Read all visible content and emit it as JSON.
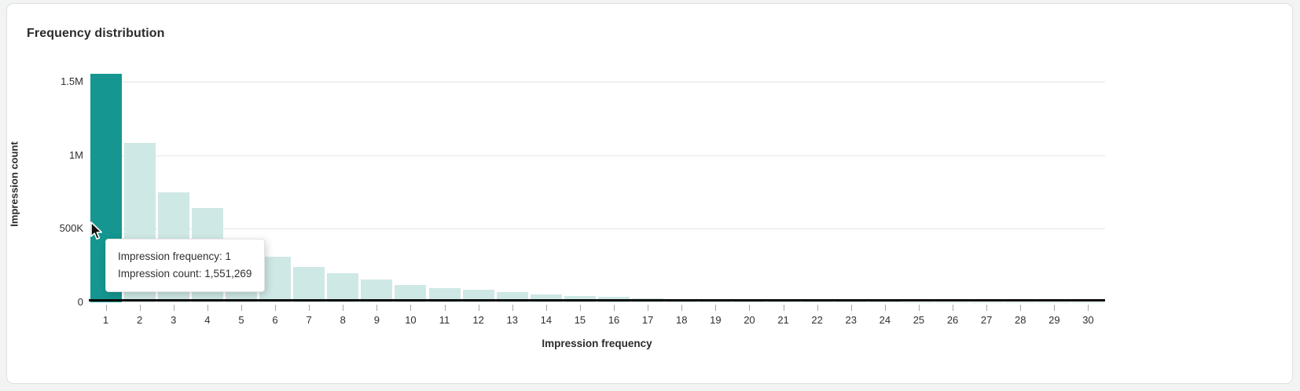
{
  "page": {
    "background_color": "#f2f3f3"
  },
  "card": {
    "title": "Frequency distribution",
    "background_color": "#ffffff",
    "border_color": "#e0e0e0"
  },
  "chart_data": {
    "type": "bar",
    "title": "Frequency distribution",
    "xlabel": "Impression frequency",
    "ylabel": "Impression count",
    "categories": [
      "1",
      "2",
      "3",
      "4",
      "5",
      "6",
      "7",
      "8",
      "9",
      "10",
      "11",
      "12",
      "13",
      "14",
      "15",
      "16",
      "17",
      "18",
      "19",
      "20",
      "21",
      "22",
      "23",
      "24",
      "25",
      "26",
      "27",
      "28",
      "29",
      "30"
    ],
    "values": [
      1551269,
      1085000,
      746000,
      642000,
      410000,
      308000,
      240000,
      198000,
      154000,
      120000,
      95000,
      86000,
      68000,
      52000,
      42000,
      37000,
      26000,
      18000,
      12000,
      8000,
      6000,
      4600,
      3600,
      2800,
      2200,
      1800,
      1400,
      1100,
      900,
      750
    ],
    "ylim": [
      0,
      1600000
    ],
    "ytick_values": [
      0,
      500000,
      1000000,
      1500000
    ],
    "ytick_labels": [
      "0",
      "500K",
      "1M",
      "1.5M"
    ],
    "grid": "horizontal gridlines at y ticks",
    "legend": "none",
    "highlighted_bar_index": 0,
    "bar_color": "#cee8e5",
    "highlight_color": "#159690",
    "axis_color": "#0c0c0c",
    "gridline_color": "#e5e5e5"
  },
  "tooltip": {
    "line1": "Impression frequency: 1",
    "line2": "Impression count: 1,551,269"
  },
  "cursor": {
    "type": "arrow-pointer"
  }
}
